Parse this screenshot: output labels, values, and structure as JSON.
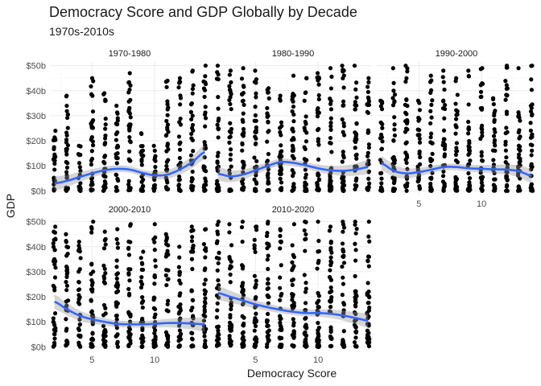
{
  "chart_data": {
    "type": "scatter",
    "title": "Democracy Score and GDP Globally by Decade",
    "subtitle": "1970s-2010s",
    "xlabel": "Democracy Score",
    "ylabel": "GDP",
    "xlim": [
      1.7,
      14.3
    ],
    "ylim": [
      -1.5,
      51.5
    ],
    "x_ticks": [
      5,
      10
    ],
    "x_tick_labels": [
      "5",
      "10"
    ],
    "y_ticks": [
      0,
      10,
      20,
      30,
      40,
      50
    ],
    "y_tick_labels": [
      "$0b",
      "$10b",
      "$20b",
      "$30b",
      "$40b",
      "$50b"
    ],
    "point_color": "#000000",
    "smooth_color": "#3366ff",
    "band_color": "#999999",
    "series": [
      {
        "name": "1970-1980",
        "x_values": [
          2,
          3,
          4,
          5,
          6,
          7,
          8,
          9,
          10,
          11,
          12,
          13,
          14
        ],
        "max_gdp_by_x": [
          24,
          38,
          18,
          45,
          39,
          34,
          47,
          23,
          18,
          44,
          45,
          48,
          50
        ],
        "smooth_x": [
          2,
          3,
          4,
          5,
          6,
          7,
          8,
          9,
          10,
          11,
          12,
          13,
          14
        ],
        "smooth_y": [
          3,
          4,
          5.5,
          7,
          8.2,
          8.8,
          8.5,
          7.2,
          6.2,
          6.5,
          8.5,
          11.5,
          15.5
        ]
      },
      {
        "name": "1980-1990",
        "x_values": [
          2,
          3,
          4,
          5,
          6,
          7,
          8,
          9,
          10,
          11,
          12,
          13,
          14
        ],
        "max_gdp_by_x": [
          50,
          48,
          49,
          48,
          41,
          38,
          46,
          45,
          47,
          49,
          50,
          50,
          45
        ],
        "smooth_x": [
          2,
          3,
          4,
          5,
          6,
          7,
          8,
          9,
          10,
          11,
          12,
          13,
          14
        ],
        "smooth_y": [
          6.8,
          5.8,
          6.5,
          8.2,
          10,
          11.5,
          11.2,
          10.2,
          9,
          8.2,
          8,
          8.5,
          9.5
        ]
      },
      {
        "name": "1990-2000",
        "x_values": [
          2,
          3,
          4,
          5,
          6,
          7,
          8,
          9,
          10,
          11,
          12,
          13,
          14
        ],
        "max_gdp_by_x": [
          36,
          49,
          50,
          36,
          46,
          48,
          45,
          48,
          49,
          37,
          50,
          49,
          50
        ],
        "smooth_x": [
          2,
          3,
          4,
          5,
          6,
          7,
          8,
          9,
          10,
          11,
          12,
          13,
          14
        ],
        "smooth_y": [
          11,
          8,
          7,
          7.5,
          8.5,
          9.5,
          9.5,
          9,
          8.8,
          8.6,
          8.5,
          7.8,
          6
        ]
      },
      {
        "name": "2000-2010",
        "x_values": [
          2,
          3,
          4,
          5,
          6,
          7,
          8,
          9,
          10,
          11,
          12,
          13,
          14
        ],
        "max_gdp_by_x": [
          48,
          45,
          42,
          50,
          46,
          47,
          49,
          38,
          49,
          45,
          40,
          48,
          47
        ],
        "smooth_x": [
          2,
          3,
          4,
          5,
          6,
          7,
          8,
          9,
          10,
          11,
          12,
          13,
          14
        ],
        "smooth_y": [
          18,
          15,
          12.5,
          11,
          10,
          9.2,
          9,
          9,
          9.2,
          9.5,
          9.5,
          9.3,
          9
        ]
      },
      {
        "name": "2010-2020",
        "x_values": [
          2,
          3,
          4,
          5,
          6,
          7,
          8,
          9,
          10,
          11,
          12,
          13,
          14
        ],
        "max_gdp_by_x": [
          50,
          49,
          50,
          48,
          50,
          47,
          49,
          50,
          50,
          48,
          50,
          50,
          50
        ],
        "smooth_x": [
          2,
          3,
          4,
          5,
          6,
          7,
          8,
          9,
          10,
          11,
          12,
          13,
          14
        ],
        "smooth_y": [
          21.5,
          20,
          18.5,
          17,
          15.8,
          14.8,
          14,
          13.5,
          13.5,
          13.2,
          12.5,
          11.5,
          10.5
        ]
      }
    ]
  }
}
